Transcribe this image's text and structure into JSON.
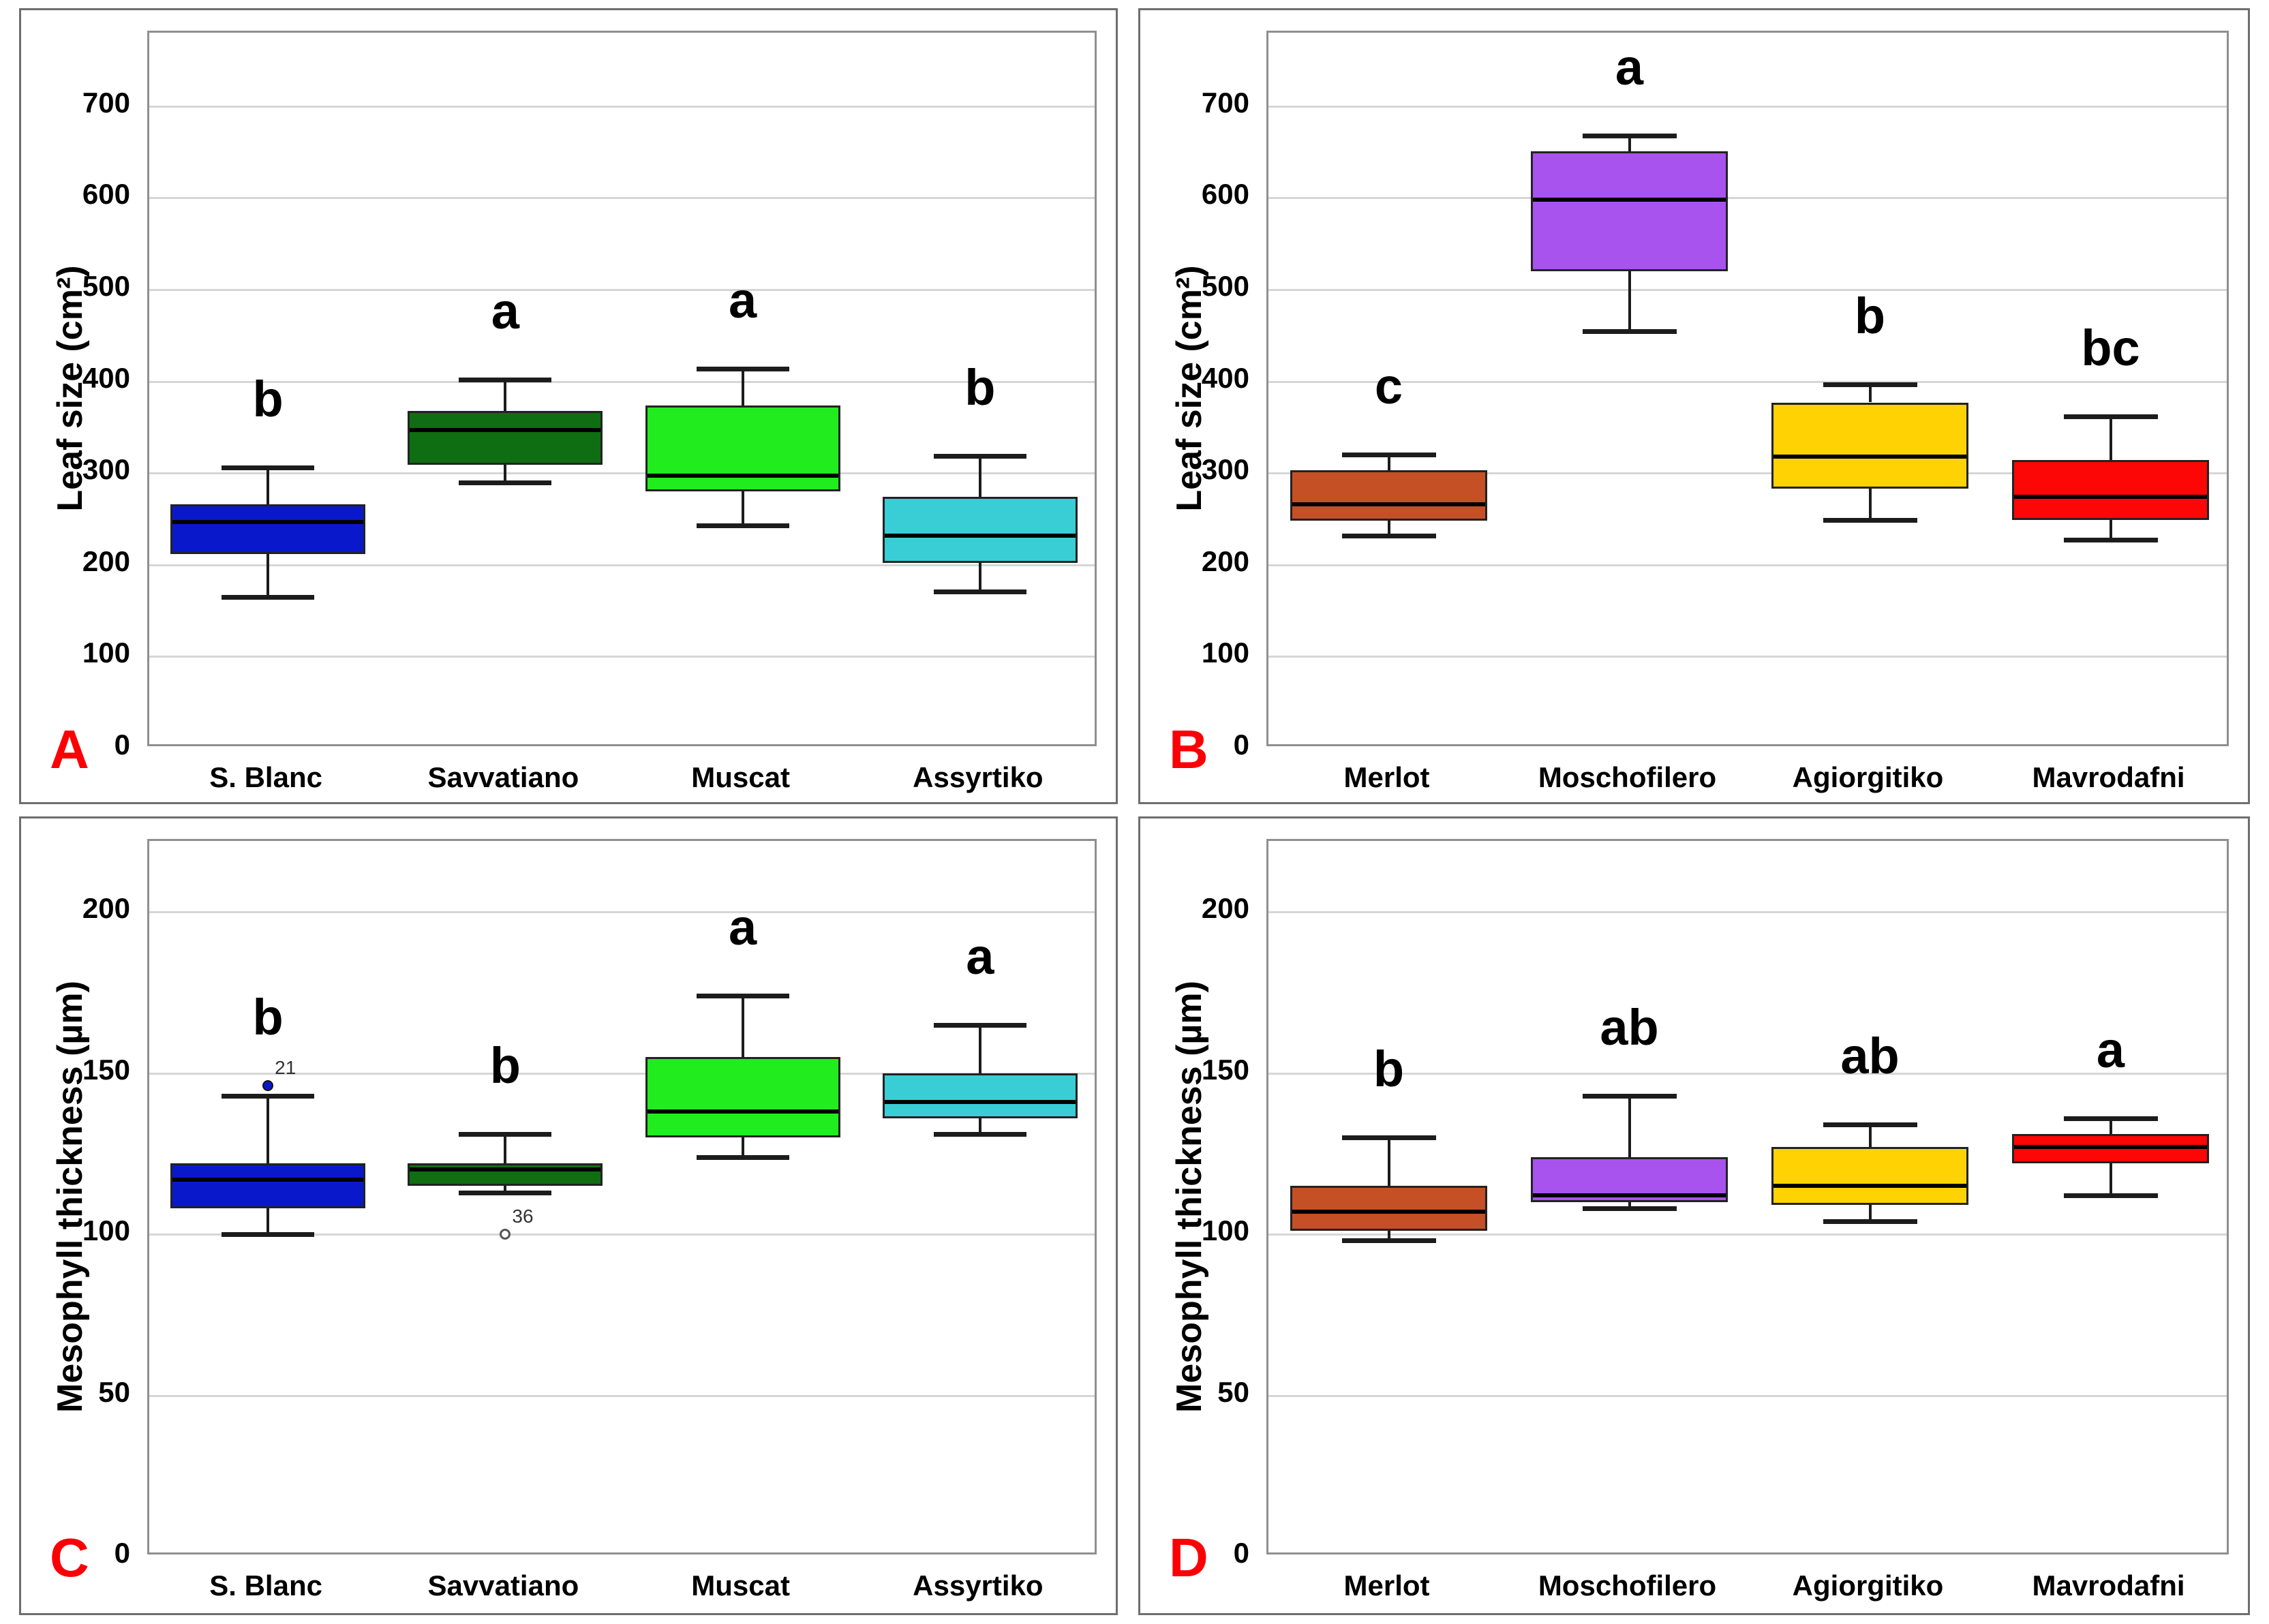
{
  "figure": {
    "background": "#FFFFFF",
    "panel_border_color": "#6E6E6E",
    "plot_border_color": "#8F8F8F",
    "grid_color": "#D6D6D6",
    "box_edge_color": "#222222",
    "median_color": "#000000",
    "whisker_color": "#1C1C1C",
    "panel_letter_color": "#FB0106",
    "axis_text_color": "#000000",
    "outlier_label_color": "#333333"
  },
  "chart_data": [
    {
      "id": "A",
      "type": "box",
      "panel_letter": "A",
      "ylabel": "Leaf size (cm²)",
      "ylim": [
        0,
        780
      ],
      "yticks": [
        0,
        100,
        200,
        300,
        400,
        500,
        600,
        700
      ],
      "grid": true,
      "legend": "none",
      "categories": [
        "S. Blanc",
        "Savvatiano",
        "Muscat",
        "Assyrtiko"
      ],
      "series": [
        {
          "name": "S. Blanc",
          "color": "#0A18CC",
          "letter": "b",
          "min": 165,
          "q1": 212,
          "median": 247,
          "q3": 266,
          "max": 306,
          "outliers": []
        },
        {
          "name": "Savvatiano",
          "color": "#0F6E11",
          "letter": "a",
          "min": 290,
          "q1": 309,
          "median": 347,
          "q3": 368,
          "max": 402,
          "outliers": []
        },
        {
          "name": "Muscat",
          "color": "#21EC1E",
          "letter": "a",
          "min": 243,
          "q1": 280,
          "median": 297,
          "q3": 374,
          "max": 414,
          "outliers": []
        },
        {
          "name": "Assyrtiko",
          "color": "#39CED6",
          "letter": "b",
          "min": 171,
          "q1": 202,
          "median": 232,
          "q3": 274,
          "max": 319,
          "outliers": []
        }
      ]
    },
    {
      "id": "B",
      "type": "box",
      "panel_letter": "B",
      "ylabel": "Leaf size (cm²)",
      "ylim": [
        0,
        780
      ],
      "yticks": [
        0,
        100,
        200,
        300,
        400,
        500,
        600,
        700
      ],
      "grid": true,
      "legend": "none",
      "categories": [
        "Merlot",
        "Moschofilero",
        "Agiorgitiko",
        "Mavrodafni"
      ],
      "series": [
        {
          "name": "Merlot",
          "color": "#C65026",
          "letter": "c",
          "min": 232,
          "q1": 248,
          "median": 266,
          "q3": 303,
          "max": 320,
          "outliers": []
        },
        {
          "name": "Moschofilero",
          "color": "#A853EE",
          "letter": "a",
          "min": 455,
          "q1": 520,
          "median": 598,
          "q3": 651,
          "max": 668,
          "outliers": []
        },
        {
          "name": "Agiorgitiko",
          "color": "#FFD303",
          "letter": "b",
          "min": 249,
          "q1": 283,
          "median": 318,
          "q3": 377,
          "max": 397,
          "outliers": []
        },
        {
          "name": "Mavrodafni",
          "color": "#FC0606",
          "letter": "bc",
          "min": 227,
          "q1": 249,
          "median": 274,
          "q3": 314,
          "max": 362,
          "outliers": []
        }
      ]
    },
    {
      "id": "C",
      "type": "box",
      "panel_letter": "C",
      "ylabel": "Mesophyll thickness (µm)",
      "ylim": [
        0,
        222
      ],
      "yticks": [
        0,
        50,
        100,
        150,
        200
      ],
      "grid": true,
      "legend": "none",
      "categories": [
        "S. Blanc",
        "Savvatiano",
        "Muscat",
        "Assyrtiko"
      ],
      "series": [
        {
          "name": "S. Blanc",
          "color": "#0A18CC",
          "letter": "b",
          "min": 100,
          "q1": 108,
          "median": 117,
          "q3": 122,
          "max": 143,
          "outliers": [
            {
              "value": 146,
              "label": "21",
              "style": "filled"
            }
          ]
        },
        {
          "name": "Savvatiano",
          "color": "#0F6E11",
          "letter": "b",
          "min": 113,
          "q1": 115,
          "median": 120,
          "q3": 122,
          "max": 131,
          "outliers": [
            {
              "value": 100,
              "label": "36",
              "style": "open"
            }
          ]
        },
        {
          "name": "Muscat",
          "color": "#21EC1E",
          "letter": "a",
          "min": 124,
          "q1": 130,
          "median": 138,
          "q3": 155,
          "max": 174,
          "outliers": []
        },
        {
          "name": "Assyrtiko",
          "color": "#39CED6",
          "letter": "a",
          "min": 131,
          "q1": 136,
          "median": 141,
          "q3": 150,
          "max": 165,
          "outliers": []
        }
      ]
    },
    {
      "id": "D",
      "type": "box",
      "panel_letter": "D",
      "ylabel": "Mesophyll thickness (µm)",
      "ylim": [
        0,
        222
      ],
      "yticks": [
        0,
        50,
        100,
        150,
        200
      ],
      "grid": true,
      "legend": "none",
      "categories": [
        "Merlot",
        "Moschofilero",
        "Agiorgitiko",
        "Mavrodafni"
      ],
      "series": [
        {
          "name": "Merlot",
          "color": "#C65026",
          "letter": "b",
          "min": 98,
          "q1": 101,
          "median": 107,
          "q3": 115,
          "max": 130,
          "outliers": []
        },
        {
          "name": "Moschofilero",
          "color": "#A853EE",
          "letter": "ab",
          "min": 108,
          "q1": 110,
          "median": 112,
          "q3": 124,
          "max": 143,
          "outliers": []
        },
        {
          "name": "Agiorgitiko",
          "color": "#FFD303",
          "letter": "ab",
          "min": 104,
          "q1": 109,
          "median": 115,
          "q3": 127,
          "max": 134,
          "outliers": []
        },
        {
          "name": "Mavrodafni",
          "color": "#FC0606",
          "letter": "a",
          "min": 112,
          "q1": 122,
          "median": 127,
          "q3": 131,
          "max": 136,
          "outliers": []
        }
      ]
    }
  ]
}
